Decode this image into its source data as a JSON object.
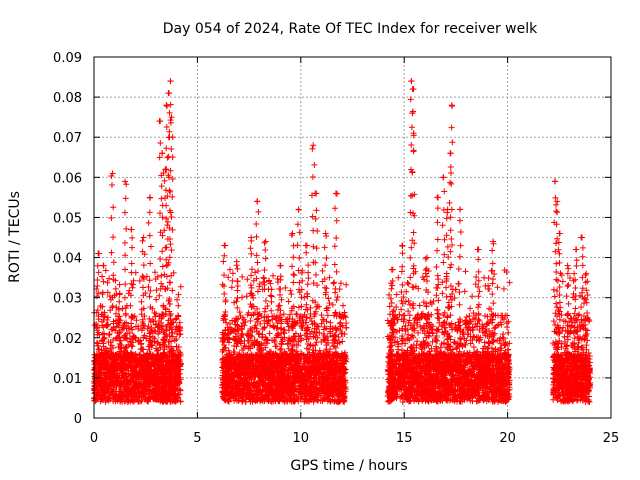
{
  "chart_data": {
    "type": "scatter",
    "title": "Day 054 of 2024, Rate Of TEC Index for receiver welk",
    "xlabel": "GPS time / hours",
    "ylabel": "ROTI / TECUs",
    "xlim": [
      0,
      25
    ],
    "ylim": [
      0,
      0.09
    ],
    "grid": true,
    "marker": "+",
    "series_color": "#ff0000",
    "x_ticks": [
      0,
      5,
      10,
      15,
      20,
      25
    ],
    "x_tick_labels": [
      "0",
      "5",
      "10",
      "15",
      "20",
      "25"
    ],
    "y_ticks": [
      0,
      0.01,
      0.02,
      0.03,
      0.04,
      0.05,
      0.06,
      0.07,
      0.08,
      0.09
    ],
    "y_tick_labels": [
      "0",
      "0.01",
      "0.02",
      "0.03",
      "0.04",
      "0.05",
      "0.06",
      "0.07",
      "0.08",
      "0.09"
    ],
    "data_segments": [
      {
        "start": 0.0,
        "end": 4.2
      },
      {
        "start": 6.2,
        "end": 12.2
      },
      {
        "start": 14.2,
        "end": 20.1
      },
      {
        "start": 22.2,
        "end": 24.0
      }
    ],
    "peaks": [
      {
        "x": 0.2,
        "y": 0.041
      },
      {
        "x": 0.45,
        "y": 0.038
      },
      {
        "x": 0.9,
        "y": 0.061
      },
      {
        "x": 1.5,
        "y": 0.059
      },
      {
        "x": 1.8,
        "y": 0.047
      },
      {
        "x": 2.4,
        "y": 0.045
      },
      {
        "x": 2.7,
        "y": 0.055
      },
      {
        "x": 3.2,
        "y": 0.074
      },
      {
        "x": 3.3,
        "y": 0.066
      },
      {
        "x": 3.45,
        "y": 0.062
      },
      {
        "x": 3.5,
        "y": 0.078
      },
      {
        "x": 3.6,
        "y": 0.081
      },
      {
        "x": 3.65,
        "y": 0.07
      },
      {
        "x": 3.7,
        "y": 0.084
      },
      {
        "x": 3.75,
        "y": 0.075
      },
      {
        "x": 6.3,
        "y": 0.043
      },
      {
        "x": 6.9,
        "y": 0.039
      },
      {
        "x": 7.6,
        "y": 0.045
      },
      {
        "x": 7.9,
        "y": 0.054
      },
      {
        "x": 8.3,
        "y": 0.044
      },
      {
        "x": 9.0,
        "y": 0.038
      },
      {
        "x": 9.6,
        "y": 0.046
      },
      {
        "x": 9.9,
        "y": 0.052
      },
      {
        "x": 10.3,
        "y": 0.043
      },
      {
        "x": 10.6,
        "y": 0.068
      },
      {
        "x": 10.75,
        "y": 0.056
      },
      {
        "x": 11.2,
        "y": 0.046
      },
      {
        "x": 11.7,
        "y": 0.056
      },
      {
        "x": 14.4,
        "y": 0.037
      },
      {
        "x": 14.9,
        "y": 0.043
      },
      {
        "x": 15.35,
        "y": 0.084
      },
      {
        "x": 15.45,
        "y": 0.082
      },
      {
        "x": 15.4,
        "y": 0.076
      },
      {
        "x": 16.1,
        "y": 0.04
      },
      {
        "x": 16.6,
        "y": 0.055
      },
      {
        "x": 16.9,
        "y": 0.06
      },
      {
        "x": 17.1,
        "y": 0.052
      },
      {
        "x": 17.3,
        "y": 0.078
      },
      {
        "x": 17.25,
        "y": 0.066
      },
      {
        "x": 17.7,
        "y": 0.052
      },
      {
        "x": 18.6,
        "y": 0.042
      },
      {
        "x": 19.3,
        "y": 0.044
      },
      {
        "x": 22.3,
        "y": 0.059
      },
      {
        "x": 22.4,
        "y": 0.054
      },
      {
        "x": 22.5,
        "y": 0.046
      },
      {
        "x": 22.9,
        "y": 0.038
      },
      {
        "x": 23.3,
        "y": 0.042
      },
      {
        "x": 23.6,
        "y": 0.045
      },
      {
        "x": 23.8,
        "y": 0.036
      }
    ]
  }
}
